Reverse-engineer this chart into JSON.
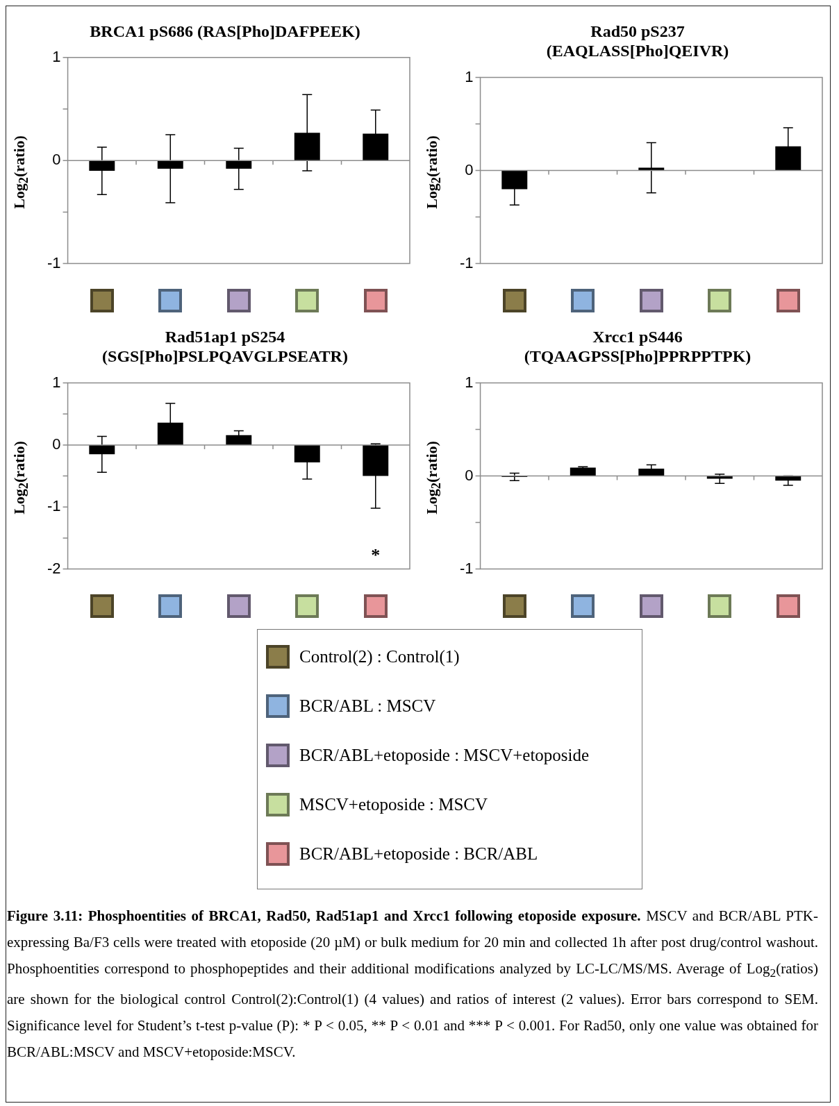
{
  "chart_data": [
    {
      "type": "bar",
      "title": "BRCA1 pS686 (RAS[Pho]DAFPEEK)",
      "ylabel": "Log$_{2}$(ratio)",
      "categories": [
        null,
        null,
        null,
        null,
        null
      ],
      "color": "#000000",
      "values": [
        -0.1,
        -0.08,
        -0.08,
        0.27,
        0.26
      ],
      "errors": [
        0.23,
        0.33,
        0.2,
        0.37,
        0.23
      ],
      "ylim": [
        -1,
        1
      ],
      "yticks": [
        -1,
        {
          "value": -0.5,
          "label": null
        },
        0,
        {
          "value": 0.5,
          "label": null
        },
        1
      ]
    },
    {
      "type": "bar",
      "title": "Rad50 pS237\n(EAQLASS[Pho]QEIVR)",
      "ylabel": "Log$_{2}$(ratio)",
      "categories": [
        null,
        null,
        null,
        null,
        null
      ],
      "color": "#000000",
      "values": [
        -0.2,
        null,
        0.03,
        null,
        0.26
      ],
      "errors": [
        0.17,
        null,
        0.27,
        null,
        0.2
      ],
      "ylim": [
        -1,
        1
      ],
      "yticks": [
        -1,
        {
          "value": -0.5,
          "label": null
        },
        0,
        {
          "value": 0.5,
          "label": null
        },
        1
      ]
    },
    {
      "type": "bar",
      "title": "Rad51ap1 pS254\n(SGS[Pho]PSLPQAVGLPSEATR)",
      "ylabel": "Log$_{2}$(ratio)",
      "categories": [
        null,
        null,
        null,
        null,
        null
      ],
      "color": "#000000",
      "values": [
        -0.15,
        0.36,
        0.16,
        -0.28,
        -0.5
      ],
      "errors": [
        0.29,
        0.31,
        0.07,
        0.27,
        0.52
      ],
      "ylim": [
        -2,
        1
      ],
      "yticks": [
        -2,
        {
          "value": -1.5,
          "label": null
        },
        -1,
        {
          "value": -0.5,
          "label": null
        },
        0,
        {
          "value": 0.5,
          "label": null
        },
        1
      ],
      "annotations": [
        "*"
      ]
    },
    {
      "type": "bar",
      "title": "Xrcc1 pS446\n(TQAAGPSS[Pho]PPRPPTPK)",
      "ylabel": "Log$_{2}$(ratio)",
      "categories": [
        null,
        null,
        null,
        null,
        null
      ],
      "color": "#000000",
      "values": [
        -0.01,
        0.09,
        0.08,
        -0.03,
        -0.05
      ],
      "errors": [
        0.04,
        0.01,
        0.04,
        0.05,
        0.05
      ],
      "ylim": [
        -1,
        1
      ],
      "yticks": [
        -1,
        {
          "value": -0.5,
          "label": null
        },
        0,
        {
          "value": 0.5,
          "label": null
        },
        1
      ]
    },
    {
      "type": "other",
      "categories": [
        "Control(2) : Control(1)",
        "BCR/ABL : MSCV",
        "BCR/ABL+etoposide : MSCV+etoposide",
        "MSCV+etoposide : MSCV",
        "BCR/ABL+etoposide : BCR/ABL"
      ],
      "colors": [
        "#8b7d4a",
        "#8fb4e0",
        "#b3a2c7",
        "#c7df9f",
        "#e8969a"
      ],
      "annotations": [
        "Figure 3.11: Phosphoentities of BRCA1, Rad50, Rad51ap1 and Xrcc1 following etoposide exposure.",
        "MSCV and BCR/ABL PTK-expressing Ba/F3 cells were treated with etoposide (20 µM) or bulk medium for 20 min and collected 1h after post drug/control washout. Phosphoentities correspond to phosphopeptides and their additional modifications analyzed by LC-LC/MS/MS. Average of Log$_{2}$(ratios) are shown for the biological control Control(2):Control(1) (4 values) and ratios of interest (2 values). Error bars correspond to SEM. Significance level for Student’s t-test p-value (P): * P < 0.05, ** P < 0.01 and *** P < 0.001. For Rad50, only one value was obtained for BCR/ABL:MSCV and MSCV+etoposide:MSCV."
      ]
    }
  ]
}
